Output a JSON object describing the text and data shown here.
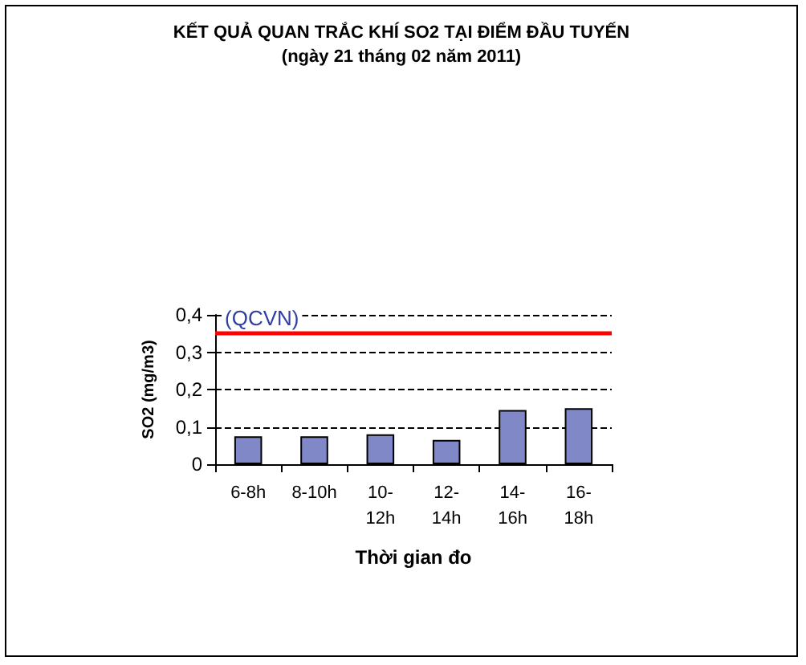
{
  "chart_data": {
    "type": "bar",
    "title": "KẾT QUẢ QUAN TRẮC KHÍ SO2 TẠI ĐIỂM ĐẦU TUYẾN",
    "subtitle": "(ngày 21 tháng 02 năm 2011)",
    "xlabel": "Thời gian đo",
    "ylabel": "SO2 (mg/m3)",
    "categories": [
      "6-8h",
      "8-10h",
      "10-12h",
      "12-14h",
      "14-16h",
      "16-18h"
    ],
    "values": [
      0.075,
      0.075,
      0.08,
      0.065,
      0.145,
      0.15
    ],
    "color": "#8088c8",
    "ylim": [
      0,
      0.4
    ],
    "yticks": [
      {
        "value": 0,
        "label": "0"
      },
      {
        "value": 0.1,
        "label": "0,1"
      },
      {
        "value": 0.2,
        "label": "0,2"
      },
      {
        "value": 0.3,
        "label": "0,3"
      },
      {
        "value": 0.4,
        "label": "0,4"
      }
    ],
    "ref_lines": [
      {
        "axis": "y",
        "value": 0.35,
        "label": "(QCVN)",
        "color": "#ff0000"
      }
    ],
    "grid": "y"
  }
}
